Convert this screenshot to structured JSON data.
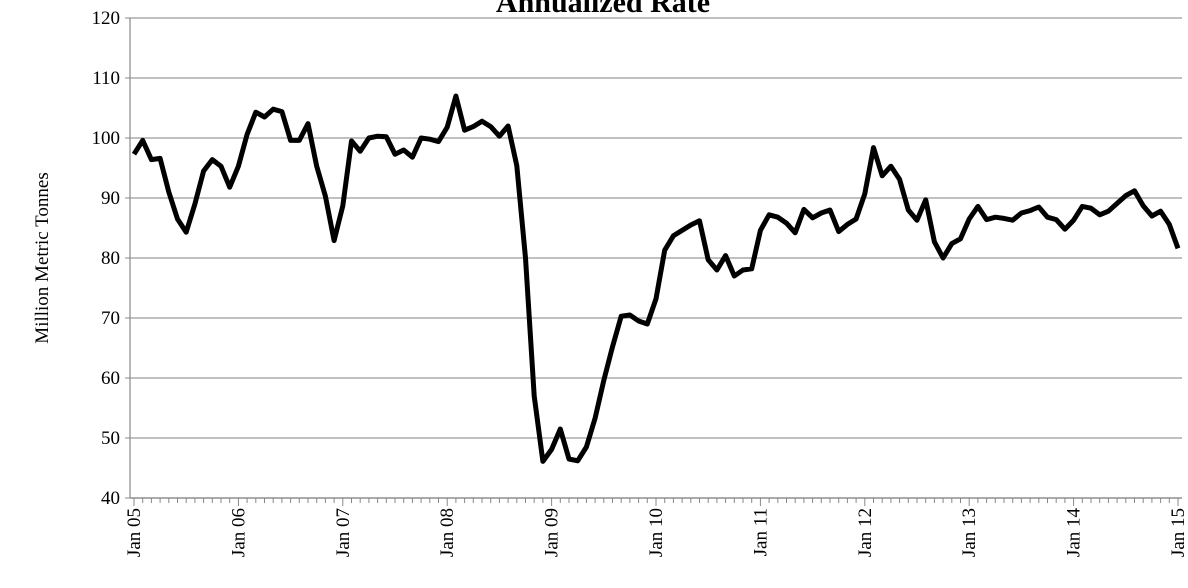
{
  "chart_data": {
    "type": "line",
    "title": "Annualized Rate",
    "y_label": "Million Metric Tonnes",
    "categories": [
      "Jan 05",
      null,
      null,
      null,
      null,
      null,
      null,
      null,
      null,
      null,
      null,
      null,
      "Jan 06",
      null,
      null,
      null,
      null,
      null,
      null,
      null,
      null,
      null,
      null,
      null,
      "Jan 07",
      null,
      null,
      null,
      null,
      null,
      null,
      null,
      null,
      null,
      null,
      null,
      "Jan 08",
      null,
      null,
      null,
      null,
      null,
      null,
      null,
      null,
      null,
      null,
      null,
      "Jan 09",
      null,
      null,
      null,
      null,
      null,
      null,
      null,
      null,
      null,
      null,
      null,
      "Jan 10",
      null,
      null,
      null,
      null,
      null,
      null,
      null,
      null,
      null,
      null,
      null,
      "Jan 11",
      null,
      null,
      null,
      null,
      null,
      null,
      null,
      null,
      null,
      null,
      null,
      "Jan 12",
      null,
      null,
      null,
      null,
      null,
      null,
      null,
      null,
      null,
      null,
      null,
      "Jan 13",
      null,
      null,
      null,
      null,
      null,
      null,
      null,
      null,
      null,
      null,
      null,
      "Jan 14",
      null,
      null,
      null,
      null,
      null,
      null,
      null,
      null,
      null,
      null,
      null,
      "Jan 15"
    ],
    "values": [
      97.3,
      99.6,
      96.4,
      96.6,
      91,
      86.5,
      84.3,
      89,
      94.5,
      96.4,
      95.3,
      91.8,
      95.3,
      100.6,
      104.3,
      103.5,
      104.8,
      104.4,
      99.6,
      99.6,
      102.4,
      95.3,
      90.3,
      82.9,
      88.7,
      99.5,
      97.8,
      100,
      100.3,
      100.2,
      97.3,
      98,
      96.8,
      100,
      99.8,
      99.4,
      101.8,
      107,
      101.3,
      101.9,
      102.8,
      101.9,
      100.3,
      102,
      95.4,
      80,
      57,
      46.1,
      48.1,
      51.5,
      46.5,
      46.2,
      48.5,
      53.3,
      59.6,
      65.2,
      70.3,
      70.5,
      69.5,
      69,
      73.2,
      81.3,
      83.7,
      84.6,
      85.5,
      86.2,
      79.7,
      78,
      80.4,
      77,
      78,
      78.2,
      84.6,
      87.2,
      86.8,
      85.8,
      84.2,
      88.1,
      86.7,
      87.5,
      88,
      84.4,
      85.6,
      86.5,
      90.7,
      98.4,
      93.7,
      95.3,
      93.1,
      88,
      86.3,
      89.7,
      82.7,
      80,
      82.4,
      83.2,
      86.5,
      88.6,
      86.4,
      86.8,
      86.6,
      86.3,
      87.5,
      87.9,
      88.5,
      86.8,
      86.4,
      84.8,
      86.3,
      88.6,
      88.3,
      87.2,
      87.8,
      89.1,
      90.4,
      91.2,
      88.7,
      87,
      87.8,
      85.6,
      81.6
    ],
    "color": "#000000",
    "ylim": [
      40,
      120
    ],
    "yticks": [
      40,
      50,
      60,
      70,
      80,
      90,
      100,
      110,
      120
    ],
    "grid": true
  }
}
